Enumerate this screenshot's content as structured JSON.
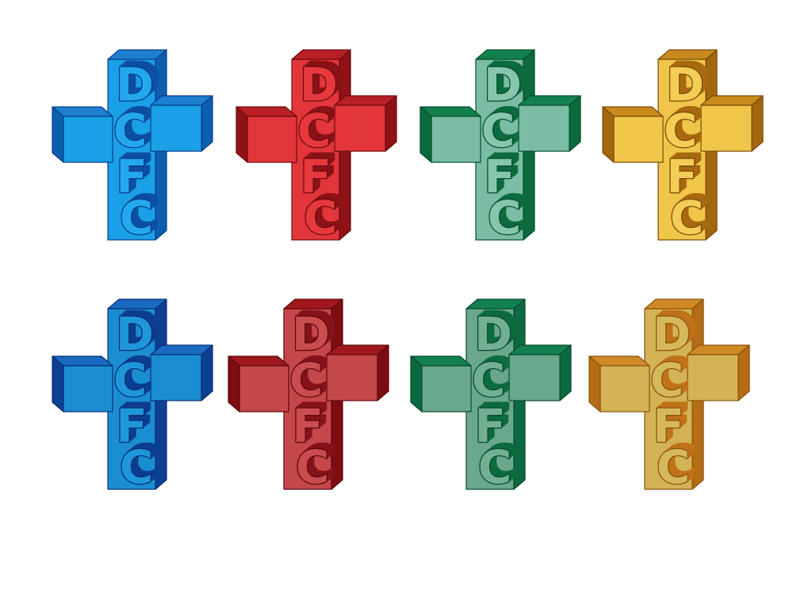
{
  "logo_text": [
    "D",
    "C",
    "F",
    "C"
  ],
  "logos": [
    {
      "variant": "flat",
      "colors": {
        "front": "#1aa0e6",
        "side": "#0d5db0",
        "top": "#1c7fd0",
        "edge": "#0b3e8a",
        "letter": "#23a8ee",
        "letter_depth": "#0c4fa3"
      }
    },
    {
      "variant": "flat",
      "colors": {
        "front": "#e2363a",
        "side": "#8e1216",
        "top": "#b82025",
        "edge": "#6d0b0f",
        "letter": "#e6393d",
        "letter_depth": "#8a1216"
      }
    },
    {
      "variant": "flat",
      "colors": {
        "front": "#7bbda4",
        "side": "#0b6a3e",
        "top": "#13804f",
        "edge": "#064d2c",
        "letter": "#86c6ad",
        "letter_depth": "#0c6b3f"
      }
    },
    {
      "variant": "flat",
      "colors": {
        "front": "#f0c64a",
        "side": "#a2660e",
        "top": "#c98a1d",
        "edge": "#7a4a08",
        "letter": "#f3cd55",
        "letter_depth": "#a8690f"
      }
    },
    {
      "variant": "shaded",
      "colors": {
        "front": "#1b8ed2",
        "side": "#0d3f93",
        "top": "#1a6ac2",
        "edge": "#0a2f73",
        "letter": "#1f96da",
        "letter_depth": "#0c3d8f"
      }
    },
    {
      "variant": "shaded",
      "colors": {
        "front": "#c4474a",
        "side": "#7d0d12",
        "top": "#a0171c",
        "edge": "#5e080c",
        "letter": "#c94c4f",
        "letter_depth": "#85131a"
      }
    },
    {
      "variant": "shaded",
      "colors": {
        "front": "#6aa88d",
        "side": "#0b6a3f",
        "top": "#128050",
        "edge": "#064a2b",
        "letter": "#72af94",
        "letter_depth": "#0c6b3f"
      }
    },
    {
      "variant": "shaded",
      "colors": {
        "front": "#d3b355",
        "side": "#b46d15",
        "top": "#d08a25",
        "edge": "#8a520c",
        "letter": "#d6b85c",
        "letter_depth": "#c07218"
      }
    }
  ]
}
